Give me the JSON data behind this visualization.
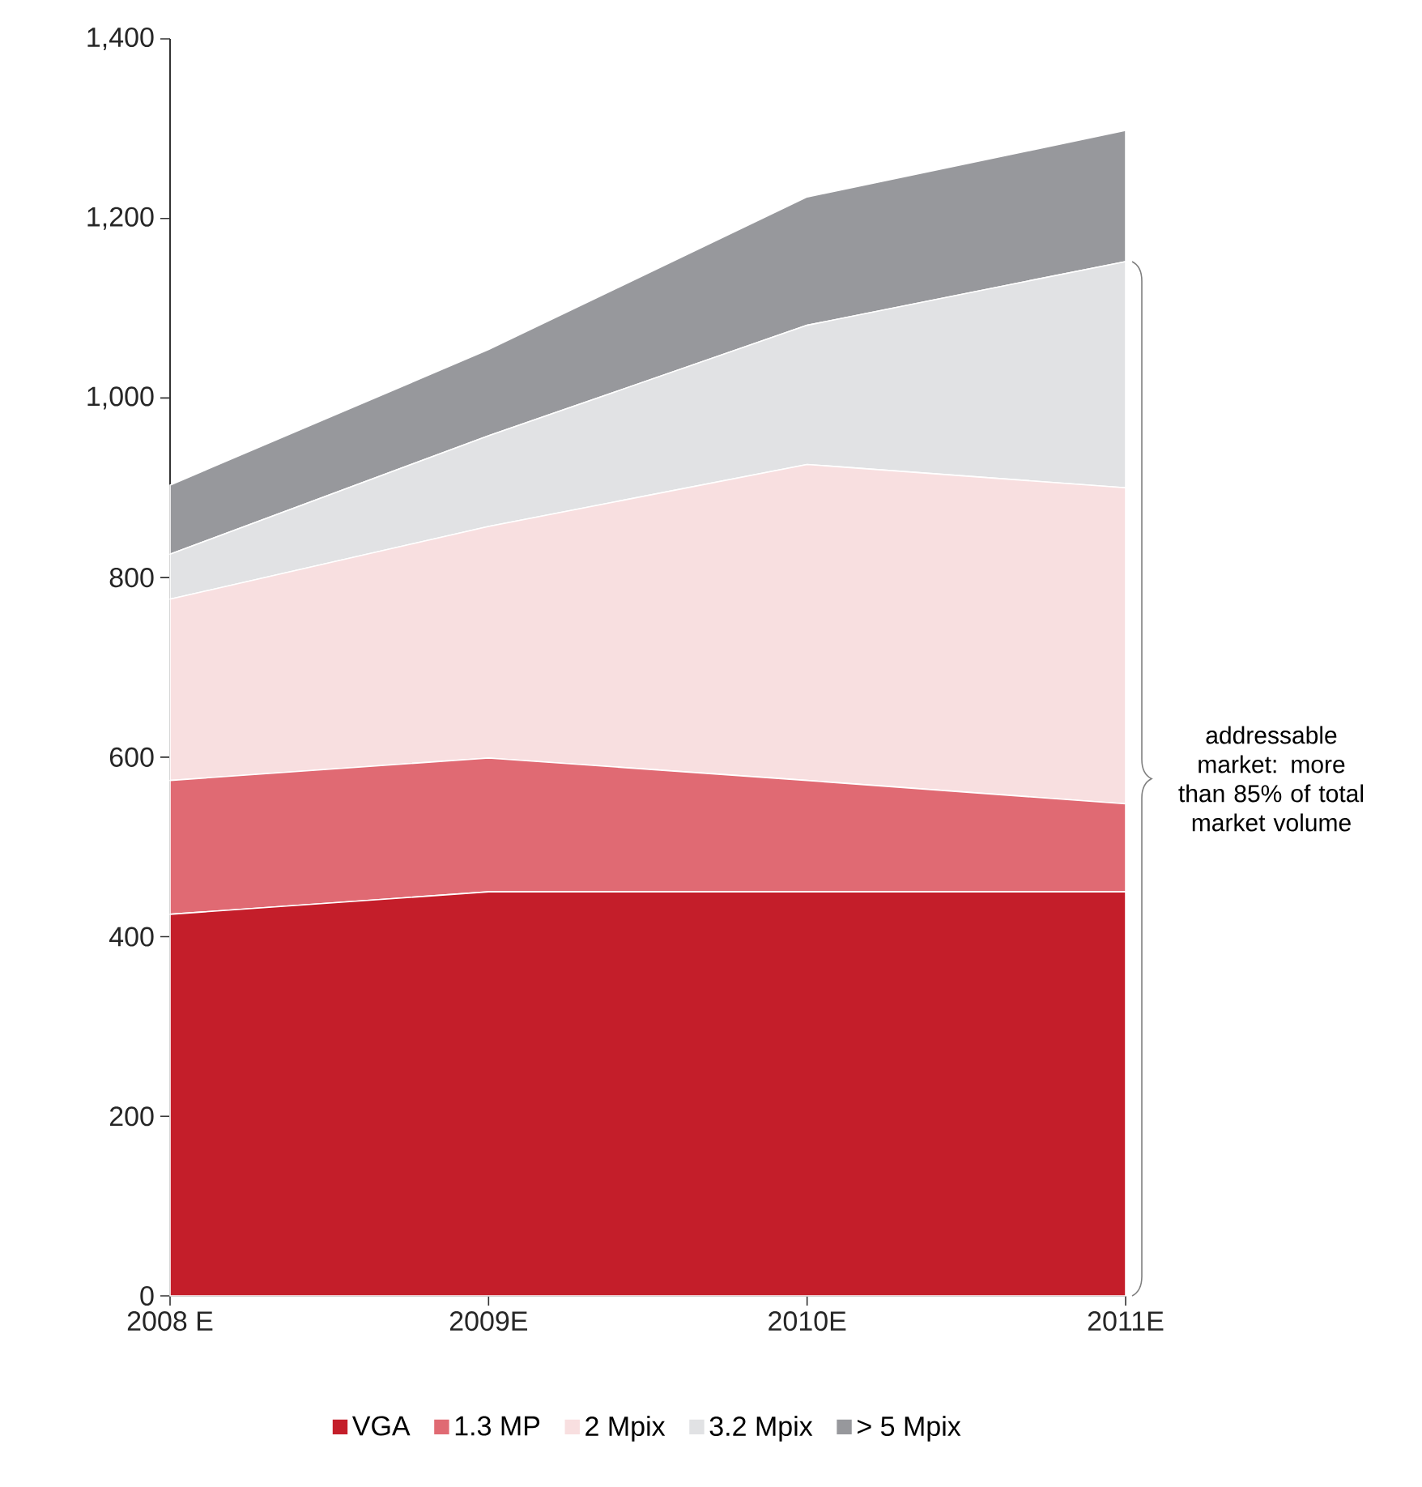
{
  "chart_data": {
    "type": "area",
    "stacked": true,
    "categories": [
      "2008 E",
      "2009E",
      "2010E",
      "2011E"
    ],
    "series": [
      {
        "name": "VGA",
        "color": "#c41e2a",
        "values": [
          425,
          450,
          450,
          450
        ]
      },
      {
        "name": "1.3 MP",
        "color": "#e06a73",
        "values": [
          149,
          149,
          124,
          98
        ]
      },
      {
        "name": "2 Mpix",
        "color": "#f8dfe0",
        "values": [
          202,
          258,
          352,
          352
        ]
      },
      {
        "name": "3.2 Mpix",
        "color": "#e1e2e4",
        "values": [
          50,
          101,
          155,
          252
        ]
      },
      {
        "name": "> 5 Mpix",
        "color": "#97989c",
        "values": [
          77,
          96,
          143,
          146
        ]
      }
    ],
    "ylim": [
      0,
      1400
    ],
    "yticks": [
      0,
      200,
      400,
      600,
      800,
      {
        "value": 1000,
        "label": "1,000"
      },
      {
        "value": 1200,
        "label": "1,200"
      },
      {
        "value": 1400,
        "label": "1,400"
      }
    ],
    "annotations": [
      "addressable market: more than 85% of total market volume"
    ],
    "legend": "bottom"
  }
}
